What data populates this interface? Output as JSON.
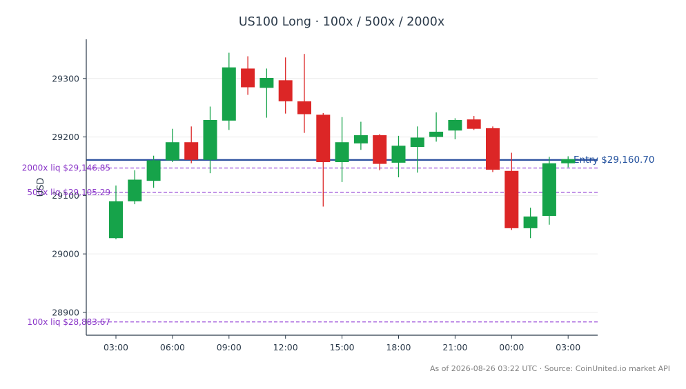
{
  "chart_data": {
    "type": "candlestick",
    "title": "US100 Long · 100x / 500x / 2000x",
    "ylabel": "USD",
    "xlabel": "",
    "ylim": [
      28861,
      29367
    ],
    "y_ticks": [
      28900,
      29000,
      29100,
      29200,
      29300
    ],
    "y_tick_labels": [
      "28900",
      "29000",
      "29100",
      "29200",
      "29300"
    ],
    "x_tick_labels": [
      "03:00",
      "06:00",
      "09:00",
      "12:00",
      "15:00",
      "18:00",
      "21:00",
      "00:00",
      "03:00"
    ],
    "x_tick_candles": [
      0,
      3,
      6,
      9,
      12,
      15,
      18,
      21,
      24
    ],
    "grid": "horizontal",
    "candles": [
      {
        "time": "03:00",
        "open": 29027,
        "high": 29117,
        "low": 29025,
        "close": 29090
      },
      {
        "time": "04:00",
        "open": 29090,
        "high": 29143,
        "low": 29085,
        "close": 29127
      },
      {
        "time": "05:00",
        "open": 29125,
        "high": 29168,
        "low": 29113,
        "close": 29160
      },
      {
        "time": "06:00",
        "open": 29160,
        "high": 29214,
        "low": 29157,
        "close": 29191
      },
      {
        "time": "07:00",
        "open": 29191,
        "high": 29218,
        "low": 29155,
        "close": 29161
      },
      {
        "time": "08:00",
        "open": 29161,
        "high": 29252,
        "low": 29138,
        "close": 29229
      },
      {
        "time": "09:00",
        "open": 29228,
        "high": 29344,
        "low": 29212,
        "close": 29319
      },
      {
        "time": "10:00",
        "open": 29317,
        "high": 29338,
        "low": 29272,
        "close": 29285
      },
      {
        "time": "11:00",
        "open": 29284,
        "high": 29317,
        "low": 29233,
        "close": 29301
      },
      {
        "time": "12:00",
        "open": 29297,
        "high": 29336,
        "low": 29240,
        "close": 29261
      },
      {
        "time": "13:00",
        "open": 29261,
        "high": 29342,
        "low": 29207,
        "close": 29239
      },
      {
        "time": "14:00",
        "open": 29238,
        "high": 29241,
        "low": 29081,
        "close": 29157
      },
      {
        "time": "15:00",
        "open": 29157,
        "high": 29234,
        "low": 29123,
        "close": 29191
      },
      {
        "time": "16:00",
        "open": 29189,
        "high": 29226,
        "low": 29178,
        "close": 29203
      },
      {
        "time": "17:00",
        "open": 29203,
        "high": 29205,
        "low": 29143,
        "close": 29154
      },
      {
        "time": "18:00",
        "open": 29156,
        "high": 29202,
        "low": 29131,
        "close": 29185
      },
      {
        "time": "19:00",
        "open": 29183,
        "high": 29218,
        "low": 29139,
        "close": 29199
      },
      {
        "time": "20:00",
        "open": 29200,
        "high": 29242,
        "low": 29192,
        "close": 29209
      },
      {
        "time": "21:00",
        "open": 29211,
        "high": 29232,
        "low": 29196,
        "close": 29229
      },
      {
        "time": "22:00",
        "open": 29230,
        "high": 29236,
        "low": 29212,
        "close": 29214
      },
      {
        "time": "23:00",
        "open": 29215,
        "high": 29218,
        "low": 29140,
        "close": 29144
      },
      {
        "time": "00:00",
        "open": 29142,
        "high": 29173,
        "low": 29041,
        "close": 29044
      },
      {
        "time": "01:00",
        "open": 29044,
        "high": 29079,
        "low": 29027,
        "close": 29064
      },
      {
        "time": "02:00",
        "open": 29065,
        "high": 29166,
        "low": 29050,
        "close": 29155
      },
      {
        "time": "03:00",
        "open": 29155,
        "high": 29167,
        "low": 29148,
        "close": 29162
      }
    ],
    "entry": {
      "price": 29160.7,
      "label": "Entry $29,160.70",
      "color": "#2b4f9e"
    },
    "liquidations": [
      {
        "price": 29146.85,
        "label": "2000x liq $29,146.85"
      },
      {
        "price": 29105.29,
        "label": "500x liq $29,105.29"
      },
      {
        "price": 28883.67,
        "label": "100x liq $28,883.67"
      }
    ],
    "colors": {
      "up": "#16a34a",
      "down": "#dc2626",
      "liquidation": "#9b4fd9",
      "entry": "#2b4f9e",
      "axis": "#2b3a4a",
      "grid": "#ececec"
    }
  },
  "footer": {
    "text": "As of 2026-08-26 03:22 UTC · Source: CoinUnited.io market API"
  }
}
